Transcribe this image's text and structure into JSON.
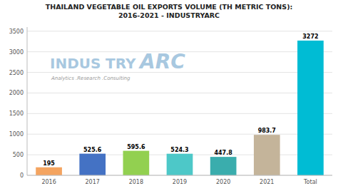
{
  "chart_data": {
    "type": "bar",
    "title": "THAILAND VEGETABLE OIL EXPORTS VOLUME (TH METRIC TONS):\n2016-2021 - INDUSTRYARC",
    "categories": [
      "2016",
      "2017",
      "2018",
      "2019",
      "2020",
      "2021",
      "Total"
    ],
    "values": [
      195,
      525.6,
      595.6,
      524.3,
      447.8,
      983.7,
      3272
    ],
    "colors": [
      "#F4A460",
      "#4472C4",
      "#92D050",
      "#4DC8C8",
      "#3AADAD",
      "#C4B49A",
      "#00BCD4"
    ],
    "ylim": [
      0,
      3600
    ],
    "yticks": [
      0,
      500,
      1000,
      1500,
      2000,
      2500,
      3000,
      3500
    ],
    "grid": true,
    "data_labels": true,
    "annotations": [
      "INDUS",
      "TRY",
      "ARC",
      "Analytics .Research .Consulting"
    ]
  }
}
